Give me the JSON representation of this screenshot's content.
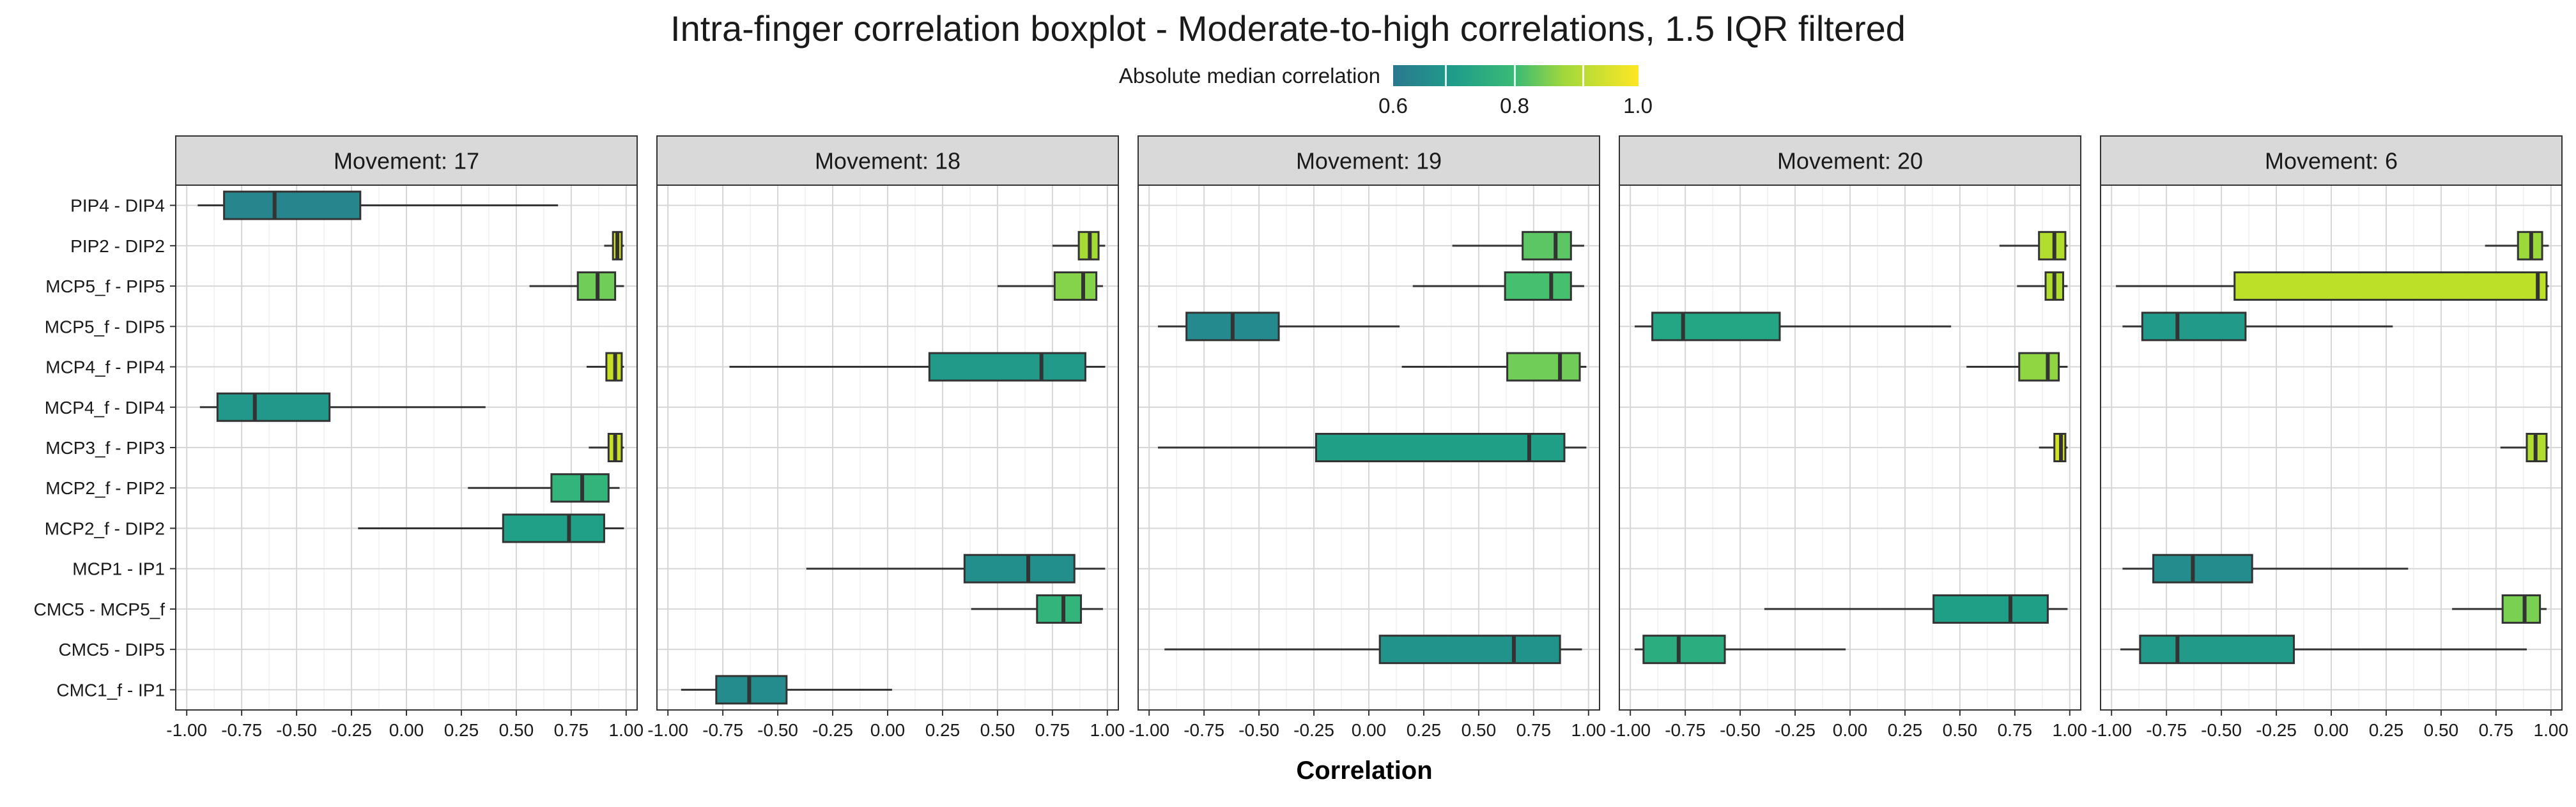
{
  "chart_data": {
    "type": "boxplot",
    "title": "Intra-finger correlation boxplot - Moderate-to-high correlations, 1.5 IQR filtered",
    "xlabel": "Correlation",
    "ylabel": "",
    "xlim": [
      -1.05,
      1.05
    ],
    "x_ticks": [
      "-1.00",
      "-0.75",
      "-0.50",
      "-0.25",
      "0.00",
      "0.25",
      "0.50",
      "0.75",
      "1.00"
    ],
    "grid": true,
    "legend": {
      "title": "Absolute median correlation",
      "position": "top",
      "ticks": [
        "0.6",
        "0.8",
        "1.0"
      ],
      "range": [
        0.55,
        1.0
      ]
    },
    "categories": [
      "PIP4 - DIP4",
      "PIP2 - DIP2",
      "MCP5_f - PIP5",
      "MCP5_f - DIP5",
      "MCP4_f - PIP4",
      "MCP4_f - DIP4",
      "MCP3_f - PIP3",
      "MCP2_f - PIP2",
      "MCP2_f - DIP2",
      "MCP1 - IP1",
      "CMC5 - MCP5_f",
      "CMC5 - DIP5",
      "CMC1_f - IP1"
    ],
    "panels": [
      {
        "label": "Movement: 17",
        "boxes": [
          {
            "category": "PIP4 - DIP4",
            "whisker_low": -0.95,
            "q1": -0.83,
            "median": -0.6,
            "q3": -0.21,
            "whisker_high": 0.69
          },
          {
            "category": "PIP2 - DIP2",
            "whisker_low": 0.9,
            "q1": 0.94,
            "median": 0.96,
            "q3": 0.98,
            "whisker_high": 0.99
          },
          {
            "category": "MCP5_f - PIP5",
            "whisker_low": 0.56,
            "q1": 0.78,
            "median": 0.87,
            "q3": 0.95,
            "whisker_high": 0.99
          },
          {
            "category": "MCP4_f - PIP4",
            "whisker_low": 0.82,
            "q1": 0.91,
            "median": 0.95,
            "q3": 0.98,
            "whisker_high": 0.99
          },
          {
            "category": "MCP4_f - DIP4",
            "whisker_low": -0.94,
            "q1": -0.86,
            "median": -0.69,
            "q3": -0.35,
            "whisker_high": 0.36
          },
          {
            "category": "MCP3_f - PIP3",
            "whisker_low": 0.83,
            "q1": 0.92,
            "median": 0.95,
            "q3": 0.98,
            "whisker_high": 0.99
          },
          {
            "category": "MCP2_f - PIP2",
            "whisker_low": 0.28,
            "q1": 0.66,
            "median": 0.8,
            "q3": 0.92,
            "whisker_high": 0.97
          },
          {
            "category": "MCP2_f - DIP2",
            "whisker_low": -0.22,
            "q1": 0.44,
            "median": 0.74,
            "q3": 0.9,
            "whisker_high": 0.99
          }
        ]
      },
      {
        "label": "Movement: 18",
        "boxes": [
          {
            "category": "PIP2 - DIP2",
            "whisker_low": 0.75,
            "q1": 0.87,
            "median": 0.92,
            "q3": 0.96,
            "whisker_high": 0.99
          },
          {
            "category": "MCP5_f - PIP5",
            "whisker_low": 0.5,
            "q1": 0.76,
            "median": 0.89,
            "q3": 0.95,
            "whisker_high": 0.98
          },
          {
            "category": "MCP4_f - PIP4",
            "whisker_low": -0.72,
            "q1": 0.19,
            "median": 0.7,
            "q3": 0.9,
            "whisker_high": 0.99
          },
          {
            "category": "MCP1 - IP1",
            "whisker_low": -0.37,
            "q1": 0.35,
            "median": 0.64,
            "q3": 0.85,
            "whisker_high": 0.99
          },
          {
            "category": "CMC5 - MCP5_f",
            "whisker_low": 0.38,
            "q1": 0.68,
            "median": 0.8,
            "q3": 0.88,
            "whisker_high": 0.98
          },
          {
            "category": "CMC1_f - IP1",
            "whisker_low": -0.94,
            "q1": -0.78,
            "median": -0.63,
            "q3": -0.46,
            "whisker_high": 0.02
          }
        ]
      },
      {
        "label": "Movement: 19",
        "boxes": [
          {
            "category": "PIP2 - DIP2",
            "whisker_low": 0.38,
            "q1": 0.7,
            "median": 0.85,
            "q3": 0.92,
            "whisker_high": 0.98
          },
          {
            "category": "MCP5_f - PIP5",
            "whisker_low": 0.2,
            "q1": 0.62,
            "median": 0.83,
            "q3": 0.92,
            "whisker_high": 0.98
          },
          {
            "category": "MCP5_f - DIP5",
            "whisker_low": -0.96,
            "q1": -0.83,
            "median": -0.62,
            "q3": -0.41,
            "whisker_high": 0.14
          },
          {
            "category": "MCP4_f - PIP4",
            "whisker_low": 0.15,
            "q1": 0.63,
            "median": 0.87,
            "q3": 0.96,
            "whisker_high": 0.99
          },
          {
            "category": "MCP3_f - PIP3",
            "whisker_low": -0.96,
            "q1": -0.24,
            "median": 0.73,
            "q3": 0.89,
            "whisker_high": 0.99
          },
          {
            "category": "CMC5 - DIP5",
            "whisker_low": -0.93,
            "q1": 0.05,
            "median": 0.66,
            "q3": 0.87,
            "whisker_high": 0.97
          }
        ]
      },
      {
        "label": "Movement: 20",
        "boxes": [
          {
            "category": "PIP2 - DIP2",
            "whisker_low": 0.68,
            "q1": 0.86,
            "median": 0.93,
            "q3": 0.98,
            "whisker_high": 0.99
          },
          {
            "category": "MCP5_f - PIP5",
            "whisker_low": 0.76,
            "q1": 0.89,
            "median": 0.93,
            "q3": 0.97,
            "whisker_high": 0.99
          },
          {
            "category": "MCP5_f - DIP5",
            "whisker_low": -0.98,
            "q1": -0.9,
            "median": -0.76,
            "q3": -0.32,
            "whisker_high": 0.46
          },
          {
            "category": "MCP4_f - PIP4",
            "whisker_low": 0.53,
            "q1": 0.77,
            "median": 0.9,
            "q3": 0.95,
            "whisker_high": 0.99
          },
          {
            "category": "MCP3_f - PIP3",
            "whisker_low": 0.86,
            "q1": 0.93,
            "median": 0.96,
            "q3": 0.98,
            "whisker_high": 0.99
          },
          {
            "category": "CMC5 - MCP5_f",
            "whisker_low": -0.39,
            "q1": 0.38,
            "median": 0.73,
            "q3": 0.9,
            "whisker_high": 0.99
          },
          {
            "category": "CMC5 - DIP5",
            "whisker_low": -0.98,
            "q1": -0.94,
            "median": -0.78,
            "q3": -0.57,
            "whisker_high": -0.02
          }
        ]
      },
      {
        "label": "Movement: 6",
        "boxes": [
          {
            "category": "PIP2 - DIP2",
            "whisker_low": 0.7,
            "q1": 0.85,
            "median": 0.91,
            "q3": 0.96,
            "whisker_high": 0.99
          },
          {
            "category": "MCP5_f - PIP5",
            "whisker_low": -0.98,
            "q1": -0.44,
            "median": 0.94,
            "q3": 0.98,
            "whisker_high": 0.99
          },
          {
            "category": "MCP5_f - DIP5",
            "whisker_low": -0.95,
            "q1": -0.86,
            "median": -0.7,
            "q3": -0.39,
            "whisker_high": 0.28
          },
          {
            "category": "MCP3_f - PIP3",
            "whisker_low": 0.77,
            "q1": 0.89,
            "median": 0.93,
            "q3": 0.98,
            "whisker_high": 0.99
          },
          {
            "category": "MCP1 - IP1",
            "whisker_low": -0.95,
            "q1": -0.81,
            "median": -0.63,
            "q3": -0.36,
            "whisker_high": 0.35
          },
          {
            "category": "CMC5 - MCP5_f",
            "whisker_low": 0.55,
            "q1": 0.78,
            "median": 0.88,
            "q3": 0.95,
            "whisker_high": 0.98
          },
          {
            "category": "CMC5 - DIP5",
            "whisker_low": -0.96,
            "q1": -0.87,
            "median": -0.7,
            "q3": -0.17,
            "whisker_high": 0.89
          }
        ]
      }
    ]
  }
}
